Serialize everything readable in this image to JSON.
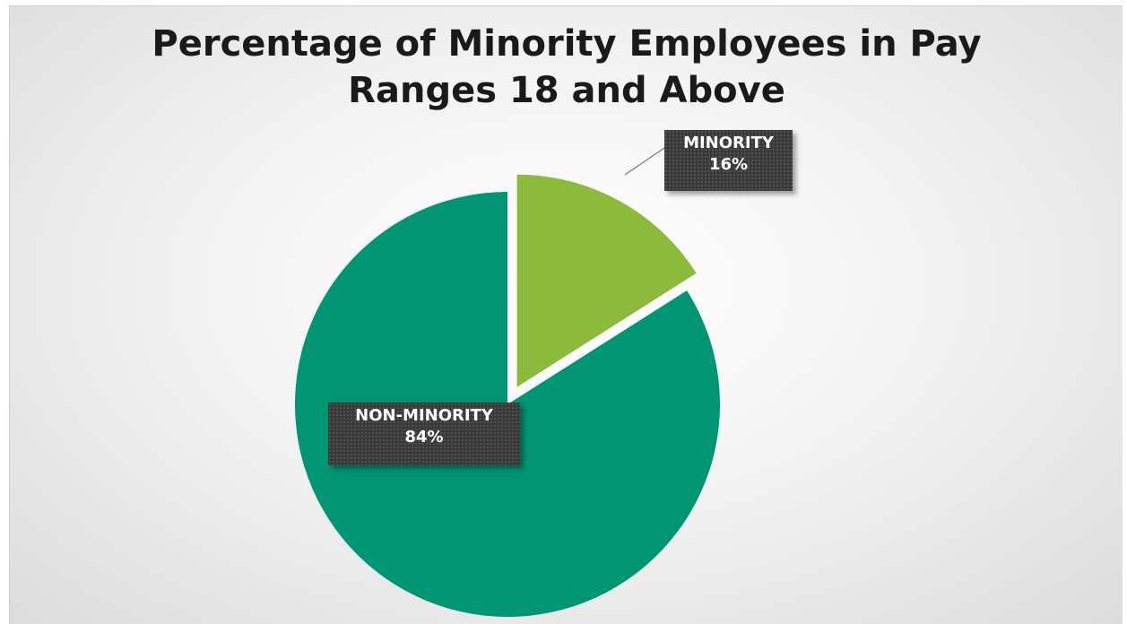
{
  "chart_data": {
    "type": "pie",
    "title_lines": [
      "Percentage of Minority Employees in Pay",
      "Ranges 18 and Above"
    ],
    "slices": [
      {
        "label": "MINORITY",
        "value": 16,
        "value_text": "16%",
        "color": "#8cbb3c",
        "exploded": true
      },
      {
        "label": "NON-MINORITY",
        "value": 84,
        "value_text": "84%",
        "color": "#009573",
        "exploded": false
      }
    ],
    "legend": "none"
  }
}
